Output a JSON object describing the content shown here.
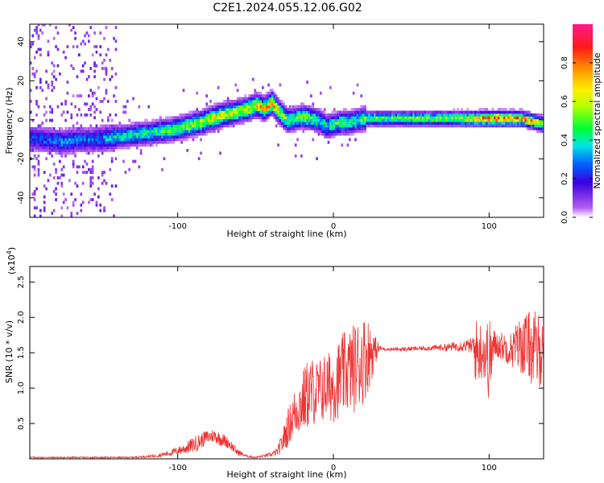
{
  "figure": {
    "title": "C2E1.2024.055.12.06.G02"
  },
  "chart_data": [
    {
      "id": "spectrogram",
      "type": "heatmap",
      "xlabel": "Height of straight line (km)",
      "ylabel": "Frequency (Hz)",
      "xlim": [
        -195,
        135
      ],
      "ylim": [
        -50,
        49
      ],
      "x_ticks": [
        -100,
        0,
        100
      ],
      "y_ticks": [
        -40,
        -20,
        0,
        20,
        40
      ],
      "grid": false,
      "colorbar": {
        "label": "Normalized spectral amplitude",
        "range": [
          0,
          1
        ],
        "ticks": [
          0.0,
          0.2,
          0.4,
          0.6,
          0.8
        ],
        "colormap": [
          "#ffffff",
          "#b35cf2",
          "#3b00e0",
          "#0066ff",
          "#00e5e5",
          "#00ff33",
          "#b8ff00",
          "#ffee00",
          "#ff9900",
          "#ff1a1a",
          "#ff1a8c"
        ]
      },
      "ridge": {
        "x": [
          -195,
          -185,
          -175,
          -165,
          -155,
          -145,
          -135,
          -125,
          -115,
          -105,
          -95,
          -85,
          -75,
          -65,
          -55,
          -50,
          -45,
          -40,
          -35,
          -30,
          -25,
          -20,
          -15,
          -10,
          -5,
          0,
          5,
          10,
          15,
          20,
          30,
          40,
          50,
          60,
          70,
          80,
          90,
          100,
          110,
          120,
          130,
          135
        ],
        "y": [
          -10,
          -11,
          -12,
          -11,
          -11,
          -10,
          -9,
          -8,
          -7,
          -6,
          -4,
          -2,
          1,
          3,
          5,
          7,
          5,
          8,
          3,
          -1,
          0,
          1,
          0,
          -1,
          -4,
          -3,
          -2,
          -2,
          -1,
          0,
          0,
          0,
          0,
          0,
          0,
          0,
          0,
          0,
          0,
          0,
          -2,
          -3
        ],
        "peak": [
          0.25,
          0.28,
          0.3,
          0.3,
          0.28,
          0.35,
          0.4,
          0.42,
          0.45,
          0.5,
          0.55,
          0.6,
          0.65,
          0.6,
          0.65,
          0.7,
          0.7,
          0.75,
          0.6,
          0.5,
          0.5,
          0.55,
          0.5,
          0.45,
          0.4,
          0.45,
          0.5,
          0.45,
          0.45,
          0.5,
          0.5,
          0.5,
          0.52,
          0.52,
          0.55,
          0.6,
          0.7,
          0.85,
          0.85,
          0.8,
          0.7,
          0.65
        ]
      }
    },
    {
      "id": "snr",
      "type": "line",
      "xlabel": "Height of straight line (km)",
      "ylabel": "SNR (10 * v/v)",
      "y_multiplier": "(x10",
      "y_multiplier_exp": "4",
      "y_multiplier_close": ")",
      "xlim": [
        -195,
        135
      ],
      "ylim": [
        0,
        2.72
      ],
      "x_ticks": [
        -100,
        0,
        100
      ],
      "y_ticks": [
        0.5,
        1.0,
        1.5,
        2.0,
        2.5
      ],
      "grid": false,
      "color": "#ee3333",
      "series": [
        {
          "x": [
            -195,
            -170,
            -150,
            -130,
            -115,
            -105,
            -95,
            -88,
            -82,
            -77,
            -72,
            -67,
            -62,
            -56,
            -50,
            -45,
            -40,
            -36,
            -33,
            -30,
            -27,
            -24,
            -20,
            -17,
            -14,
            -10,
            -6,
            -3,
            0,
            3,
            6,
            10,
            14,
            18,
            21,
            24,
            27,
            30,
            35,
            45,
            55,
            65,
            75,
            82,
            88,
            92,
            96,
            100,
            104,
            108,
            114,
            120,
            126,
            130,
            135
          ],
          "y": [
            0.02,
            0.02,
            0.02,
            0.02,
            0.04,
            0.08,
            0.15,
            0.22,
            0.3,
            0.33,
            0.28,
            0.22,
            0.1,
            0.04,
            0.02,
            0.04,
            0.06,
            0.1,
            0.22,
            0.4,
            0.55,
            0.7,
            0.8,
            0.9,
            0.95,
            0.95,
            1.0,
            1.02,
            1.05,
            1.12,
            1.18,
            1.25,
            1.3,
            1.38,
            1.45,
            1.5,
            1.54,
            1.56,
            1.55,
            1.55,
            1.56,
            1.57,
            1.58,
            1.6,
            1.6,
            1.5,
            1.55,
            1.4,
            1.62,
            1.6,
            1.55,
            1.62,
            1.6,
            1.5,
            1.55
          ],
          "spread": [
            0.01,
            0.01,
            0.01,
            0.01,
            0.02,
            0.04,
            0.08,
            0.12,
            0.1,
            0.1,
            0.1,
            0.08,
            0.05,
            0.02,
            0.01,
            0.02,
            0.03,
            0.06,
            0.15,
            0.25,
            0.3,
            0.38,
            0.45,
            0.5,
            0.5,
            0.45,
            0.5,
            0.5,
            0.55,
            0.55,
            0.6,
            0.6,
            0.65,
            0.65,
            0.6,
            0.45,
            0.2,
            0.04,
            0.02,
            0.03,
            0.03,
            0.04,
            0.06,
            0.08,
            0.1,
            0.5,
            0.4,
            0.6,
            0.2,
            0.2,
            0.25,
            0.4,
            0.5,
            0.6,
            0.45
          ]
        }
      ]
    }
  ]
}
